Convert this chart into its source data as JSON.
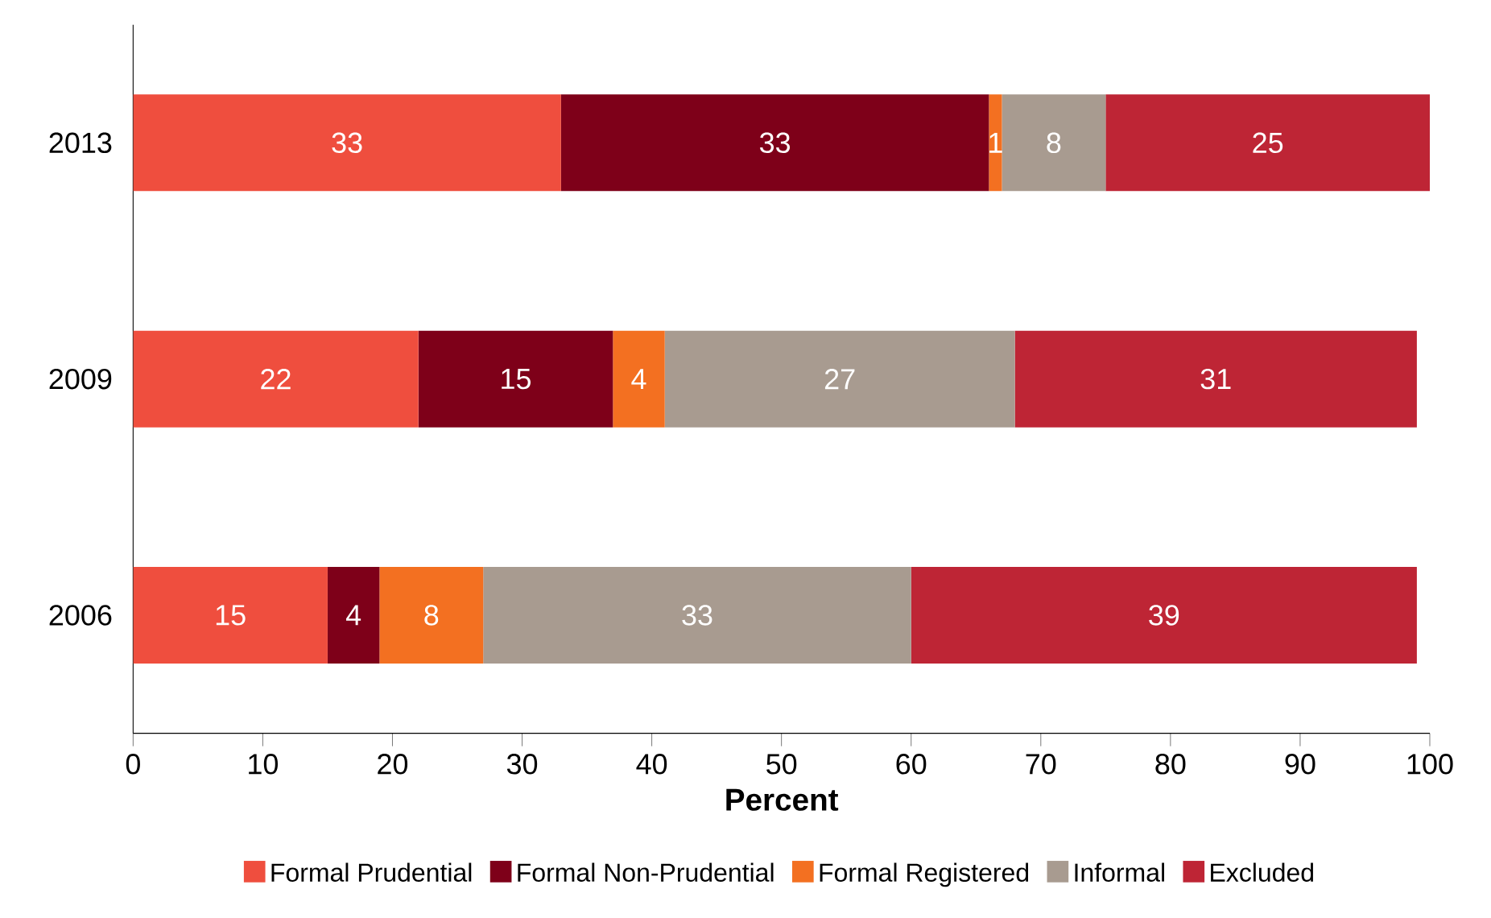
{
  "chart_data": {
    "type": "bar",
    "orientation": "horizontal",
    "stacked": true,
    "categories": [
      "2013",
      "2009",
      "2006"
    ],
    "xlabel": "Percent",
    "xlim": [
      0,
      100
    ],
    "xticks": [
      0,
      10,
      20,
      30,
      40,
      50,
      60,
      70,
      80,
      90,
      100
    ],
    "data_labels": true,
    "legend": "bottom",
    "grid": false,
    "series": [
      {
        "name": "Formal Prudential",
        "color": "#ef4e3e",
        "values": [
          33,
          22,
          15
        ]
      },
      {
        "name": "Formal Non-Prudential",
        "color": "#7e0019",
        "values": [
          33,
          15,
          4
        ]
      },
      {
        "name": "Formal Registered",
        "color": "#f37021",
        "values": [
          1,
          4,
          8
        ]
      },
      {
        "name": "Informal",
        "color": "#a89b90",
        "values": [
          8,
          27,
          33
        ]
      },
      {
        "name": "Excluded",
        "color": "#be2535",
        "values": [
          25,
          31,
          39
        ]
      }
    ]
  }
}
